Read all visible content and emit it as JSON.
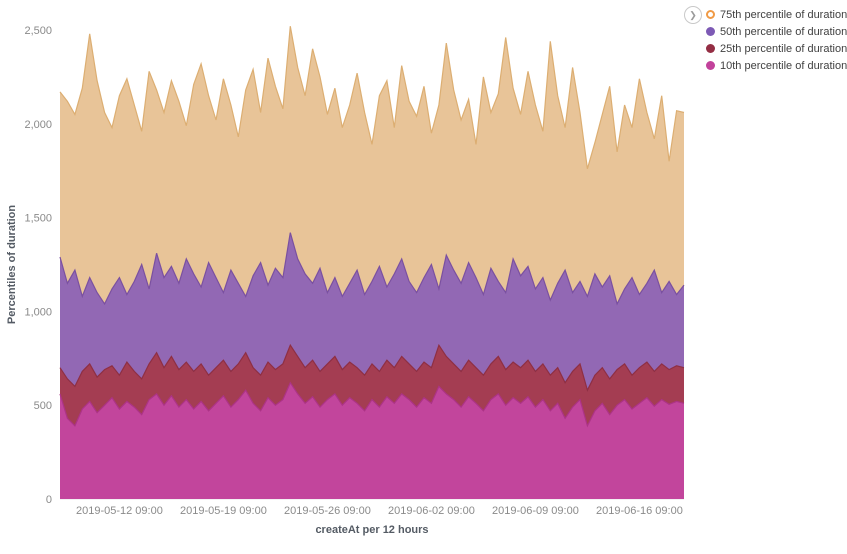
{
  "legend": {
    "toggle_icon": "❯",
    "items": [
      {
        "label": "75th percentile of duration",
        "color": "#f09a45",
        "marker": "ring"
      },
      {
        "label": "50th percentile of duration",
        "color": "#7d5ab5",
        "marker": "dot"
      },
      {
        "label": "25th percentile of duration",
        "color": "#942e44",
        "marker": "dot"
      },
      {
        "label": "10th percentile of duration",
        "color": "#c2429b",
        "marker": "dot"
      }
    ]
  },
  "chart_data": {
    "type": "area",
    "title": "",
    "xlabel": "createAt per 12 hours",
    "ylabel": "Percentiles of duration",
    "ylim": [
      0,
      2500
    ],
    "grid": false,
    "legend_position": "top-right",
    "x_interval": "12h",
    "num_points": 85,
    "ytick_values": [
      0,
      500,
      1000,
      1500,
      2000,
      2500
    ],
    "ytick_labels": [
      "0",
      "500",
      "1,000",
      "1,500",
      "2,000",
      "2,500"
    ],
    "xticks": [
      {
        "label": "2019-05-12 09:00",
        "index": 8
      },
      {
        "label": "2019-05-19 09:00",
        "index": 22
      },
      {
        "label": "2019-05-26 09:00",
        "index": 36
      },
      {
        "label": "2019-06-02 09:00",
        "index": 50
      },
      {
        "label": "2019-06-09 09:00",
        "index": 64
      },
      {
        "label": "2019-06-16 09:00",
        "index": 78
      }
    ],
    "series": [
      {
        "name": "75th percentile of duration",
        "fill": "#e8c498",
        "stroke": "#dcae72",
        "values": [
          2170,
          2120,
          2050,
          2190,
          2480,
          2230,
          2060,
          1980,
          2150,
          2240,
          2100,
          1960,
          2280,
          2180,
          2060,
          2230,
          2120,
          1990,
          2210,
          2320,
          2150,
          2020,
          2240,
          2100,
          1930,
          2180,
          2290,
          2060,
          2350,
          2200,
          2080,
          2520,
          2300,
          2150,
          2400,
          2250,
          2050,
          2190,
          1980,
          2100,
          2270,
          2060,
          1890,
          2150,
          2230,
          1980,
          2310,
          2120,
          2040,
          2200,
          1950,
          2100,
          2430,
          2180,
          2020,
          2130,
          1890,
          2250,
          2060,
          2160,
          2460,
          2190,
          2050,
          2280,
          2100,
          1960,
          2440,
          2150,
          1980,
          2300,
          2060,
          1760,
          1900,
          2050,
          2200,
          1850,
          2100,
          1980,
          2240,
          2060,
          1920,
          2150,
          1800,
          2070,
          2060
        ]
      },
      {
        "name": "50th percentile of duration",
        "fill": "#9268b4",
        "stroke": "#7a50a0",
        "values": [
          1290,
          1150,
          1220,
          1080,
          1180,
          1100,
          1040,
          1120,
          1180,
          1090,
          1160,
          1250,
          1120,
          1310,
          1180,
          1240,
          1150,
          1280,
          1200,
          1130,
          1260,
          1180,
          1100,
          1220,
          1150,
          1080,
          1190,
          1260,
          1140,
          1230,
          1180,
          1420,
          1280,
          1200,
          1150,
          1230,
          1100,
          1180,
          1080,
          1150,
          1220,
          1090,
          1160,
          1240,
          1130,
          1200,
          1280,
          1160,
          1100,
          1180,
          1250,
          1120,
          1300,
          1220,
          1150,
          1260,
          1180,
          1090,
          1230,
          1160,
          1100,
          1280,
          1190,
          1240,
          1120,
          1180,
          1060,
          1150,
          1220,
          1100,
          1160,
          1080,
          1200,
          1130,
          1190,
          1040,
          1120,
          1180,
          1090,
          1150,
          1220,
          1100,
          1160,
          1090,
          1140
        ]
      },
      {
        "name": "25th percentile of duration",
        "fill": "#a43d52",
        "stroke": "#8e2f43",
        "values": [
          700,
          640,
          600,
          680,
          720,
          650,
          690,
          710,
          660,
          730,
          680,
          640,
          720,
          780,
          700,
          760,
          690,
          730,
          680,
          720,
          660,
          700,
          740,
          680,
          720,
          780,
          700,
          660,
          730,
          690,
          720,
          820,
          760,
          700,
          740,
          680,
          720,
          760,
          690,
          730,
          700,
          660,
          720,
          680,
          740,
          700,
          760,
          720,
          680,
          730,
          700,
          820,
          760,
          720,
          680,
          740,
          700,
          660,
          720,
          760,
          690,
          730,
          700,
          740,
          680,
          720,
          660,
          700,
          620,
          680,
          720,
          580,
          660,
          700,
          640,
          690,
          720,
          660,
          700,
          730,
          680,
          720,
          690,
          710,
          700
        ]
      },
      {
        "name": "10th percentile of duration",
        "fill": "#c2459c",
        "stroke": "#ac3386",
        "values": [
          560,
          430,
          390,
          480,
          520,
          460,
          500,
          540,
          480,
          520,
          490,
          450,
          530,
          560,
          500,
          550,
          490,
          530,
          480,
          520,
          470,
          510,
          550,
          490,
          530,
          580,
          510,
          470,
          540,
          500,
          530,
          620,
          560,
          510,
          545,
          490,
          530,
          560,
          500,
          540,
          510,
          470,
          530,
          490,
          545,
          510,
          560,
          530,
          490,
          540,
          510,
          600,
          560,
          530,
          490,
          545,
          510,
          470,
          530,
          560,
          500,
          540,
          510,
          545,
          490,
          530,
          470,
          510,
          430,
          490,
          530,
          390,
          470,
          510,
          450,
          500,
          530,
          480,
          510,
          540,
          495,
          530,
          505,
          520,
          510
        ]
      }
    ]
  }
}
